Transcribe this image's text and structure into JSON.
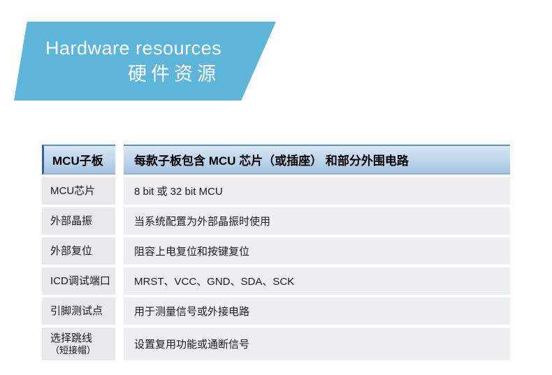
{
  "banner": {
    "title_en": "Hardware resources",
    "title_zh": "硬件资源"
  },
  "table": {
    "header": {
      "label": "MCU子板",
      "description": "每款子板包含 MCU 芯片（或插座） 和部分外围电路"
    },
    "rows": [
      {
        "label": "MCU芯片",
        "description": "8 bit 或 32 bit MCU"
      },
      {
        "label": "外部晶振",
        "description": "当系统配置为外部晶振时使用"
      },
      {
        "label": "外部复位",
        "description": "阻容上电复位和按键复位"
      },
      {
        "label": "ICD调试端口",
        "description": "MRST、VCC、GND、SDA、SCK"
      },
      {
        "label": "引脚测试点",
        "description": "用于测量信号或外接电路"
      },
      {
        "label": "选择跳线",
        "label_sub": "（短接帽）",
        "description": "设置复用功能或通断信号"
      }
    ]
  },
  "colors": {
    "banner-blue": "#5db6d9",
    "banner-text": "#ffffff",
    "header-grad-top": "#d8e7f5",
    "header-grad-bottom": "#a6c3e1",
    "header-border-top": "#5e90c4",
    "header-border-bottom": "#8fb3d9",
    "header-accent": "#33639f",
    "row-label-bg": "#e6eaeb",
    "row-desc-bg": "#edf0f1"
  }
}
